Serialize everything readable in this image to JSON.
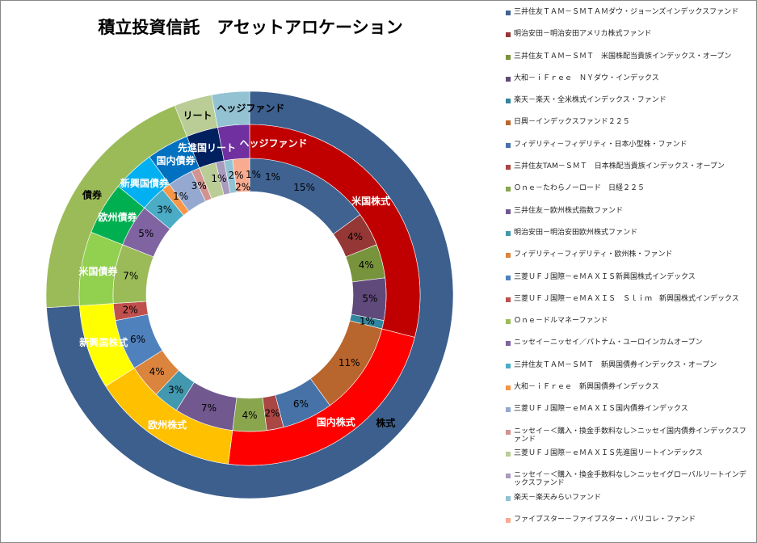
{
  "chart_data": {
    "type": "multi-level donut",
    "title": "積立投資信託　アセットアロケーション",
    "legend_placement": "right",
    "funds": [
      {
        "name": "三井住友ＴＡＭ－ＳＭＴＡＭダウ・ジョーンズインデックスファンド",
        "value": 15,
        "label": "15%",
        "color": "#3f6291"
      },
      {
        "name": "明治安田－明治安田アメリカ株式ファンド",
        "value": 4,
        "label": "4%",
        "color": "#953735"
      },
      {
        "name": "三井住友ＴＡＭ－ＳＭＴ　米国株配当貴族インデックス・オープン",
        "value": 4,
        "label": "4%",
        "color": "#77933c"
      },
      {
        "name": "大和－ｉＦｒｅｅ　ＮＹダウ・インデックス",
        "value": 5,
        "label": "5%",
        "color": "#604a7b"
      },
      {
        "name": "楽天－楽天・全米株式インデックス・ファンド",
        "value": 1,
        "label": "1%",
        "color": "#31859c"
      },
      {
        "name": "日興－インデックスファンド２２５",
        "value": 11,
        "label": "11%",
        "color": "#b9652e"
      },
      {
        "name": "フィデリティ－フィデリティ・日本小型株・ファンド",
        "value": 6,
        "label": "6%",
        "color": "#4672a8"
      },
      {
        "name": "三井住友TAM－ＳＭＴ　日本株配当貴族インデックス・オープン",
        "value": 2,
        "label": "2%",
        "color": "#aa4643"
      },
      {
        "name": "Ｏｎｅ－たわらノーロード　日経２２５",
        "value": 4,
        "label": "4%",
        "color": "#89a54e"
      },
      {
        "name": "三井住友－欧州株式指数ファンド",
        "value": 7,
        "label": "7%",
        "color": "#71588f"
      },
      {
        "name": "明治安田－明治安田欧州株式ファンド",
        "value": 3,
        "label": "3%",
        "color": "#4198af"
      },
      {
        "name": "フィデリティ－フィデリティ・欧州株・ファンド",
        "value": 4,
        "label": "4%",
        "color": "#db843d"
      },
      {
        "name": "三菱ＵＦＪ国際－ｅＭＡＸＩＳ新興国株式インデックス",
        "value": 6,
        "label": "6%",
        "color": "#4f81bd"
      },
      {
        "name": "三菱ＵＦＪ国際－ｅＭＡＸＩＳ　Ｓｌｉｍ　新興国株式インデックス",
        "value": 2,
        "label": "2%",
        "color": "#c0504d"
      },
      {
        "name": "Ｏｎｅ－ドルマネーファンド",
        "value": 7,
        "label": "7%",
        "color": "#9bbb59"
      },
      {
        "name": "ニッセイ－ニッセイ／パトナム・ユーロインカムオープン",
        "value": 5,
        "label": "5%",
        "color": "#8064a2"
      },
      {
        "name": "三井住友ＴＡＭ－ＳＭＴ　新興国債券インデックス・オープン",
        "value": 3,
        "label": "3%",
        "color": "#4bacc6"
      },
      {
        "name": "大和－ｉＦｒｅｅ　新興国債券インデックス",
        "value": 1,
        "label": "1%",
        "color": "#f79646"
      },
      {
        "name": "三菱ＵＦＪ国際－ｅＭＡＸＩＳ国内債券インデックス",
        "value": 3,
        "label": "3%",
        "color": "#95a9d0"
      },
      {
        "name": "ニッセイ－＜購入・換金手数料なし＞ニッセイ国内債券インデックスファンド",
        "value": 1,
        "label": "1%",
        "color": "#d29391"
      },
      {
        "name": "三菱ＵＦＪ国際－ｅＭＡＸＩＳ先進国リートインデックス",
        "value": 2,
        "label": "2%",
        "color": "#bacd96"
      },
      {
        "name": "ニッセイ－＜購入・換金手数料なし＞ニッセイグローバルリートインデックスファンド",
        "value": 1,
        "label": "1%",
        "color": "#a99bbd"
      },
      {
        "name": "楽天－楽天みらいファンド",
        "value": 1,
        "label": "1%",
        "color": "#92c3d4"
      },
      {
        "name": "ファイブスター－ファイブスター・バリコレ・ファンド",
        "value": 2,
        "label": "2%",
        "color": "#f9ab8f"
      }
    ],
    "categories": [
      {
        "name": "米国株式",
        "value": 29,
        "color": "#c00000"
      },
      {
        "name": "国内株式",
        "value": 23,
        "color": "#ff0000"
      },
      {
        "name": "欧州株式",
        "value": 14,
        "color": "#ffc000"
      },
      {
        "name": "新興国株式",
        "value": 8,
        "color": "#ffff00"
      },
      {
        "name": "米国債券",
        "value": 7,
        "color": "#92d050"
      },
      {
        "name": "欧州債券",
        "value": 5,
        "color": "#00b050"
      },
      {
        "name": "新興国債券",
        "value": 4,
        "color": "#00b0f0"
      },
      {
        "name": "国内債券",
        "value": 4,
        "color": "#0070c0"
      },
      {
        "name": "先進国リート",
        "value": 3,
        "color": "#002060"
      },
      {
        "name": "ヘッジファンド",
        "value": 3,
        "color": "#7030a0"
      }
    ],
    "asset_classes": [
      {
        "name": "株式",
        "value": 74,
        "color": "#3c5f8d"
      },
      {
        "name": "債券",
        "value": 20,
        "color": "#9bbb59"
      },
      {
        "name": "リート",
        "value": 3,
        "color": "#bacd96"
      },
      {
        "name": "ヘッジファンド",
        "value": 3,
        "color": "#93c3d3"
      }
    ]
  }
}
